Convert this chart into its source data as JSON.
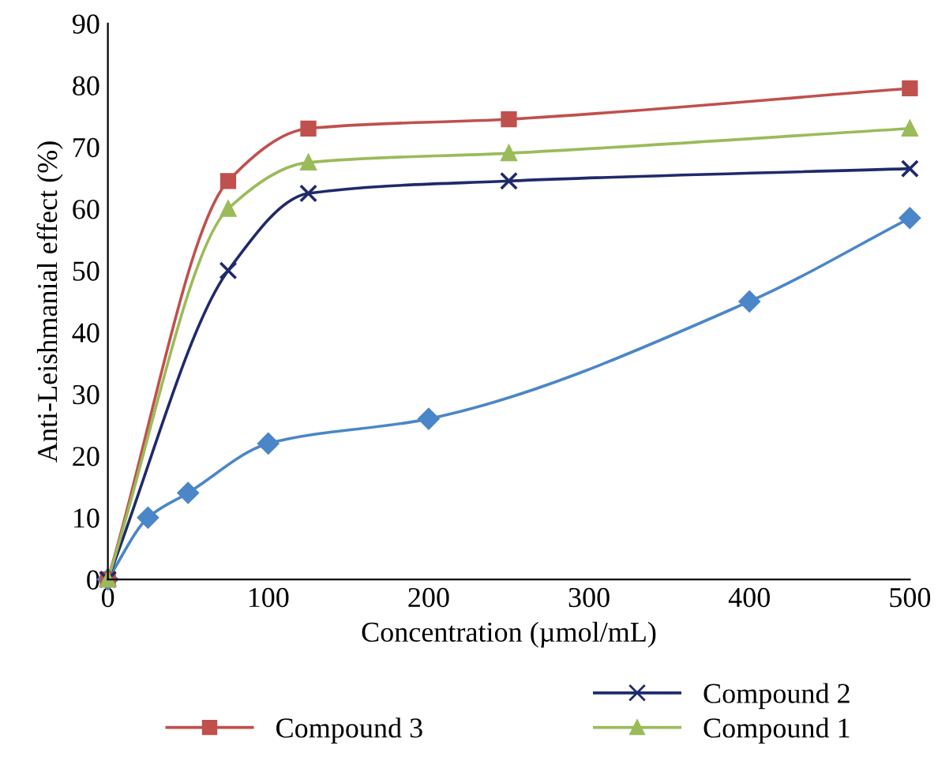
{
  "chart_data": {
    "type": "line",
    "xlabel": "Concentration (µmol/mL)",
    "ylabel": "Anti-Leishmanial effect (%)",
    "xlim": [
      0,
      500
    ],
    "xticks": [
      0,
      100,
      200,
      300,
      400,
      500
    ],
    "ylim": [
      0,
      90
    ],
    "yticks": [
      0,
      10,
      20,
      30,
      40,
      50,
      60,
      70,
      80,
      90
    ],
    "grid": false,
    "legend": "bottom",
    "line_style": "solid",
    "series": [
      {
        "color": "#4a86c8",
        "marker": "diamond",
        "x": [
          0,
          25,
          50,
          100,
          200,
          400,
          500
        ],
        "values": [
          0,
          10,
          14,
          22,
          26,
          45,
          58.5
        ]
      },
      {
        "name": "Compound 3",
        "color": "#c0504d",
        "marker": "square",
        "x": [
          0,
          75,
          125,
          250,
          500
        ],
        "values": [
          0,
          64.5,
          73,
          74.5,
          79.5
        ]
      },
      {
        "name": "Compound 2",
        "color": "#1f2a6b",
        "marker": "cross",
        "x": [
          0,
          75,
          125,
          250,
          500
        ],
        "values": [
          0,
          50,
          62.5,
          64.5,
          66.5
        ]
      },
      {
        "name": "Compound 1",
        "color": "#9bbb59",
        "marker": "triangle",
        "x": [
          0,
          75,
          125,
          250,
          500
        ],
        "values": [
          0,
          60,
          67.5,
          69,
          73
        ]
      }
    ]
  }
}
